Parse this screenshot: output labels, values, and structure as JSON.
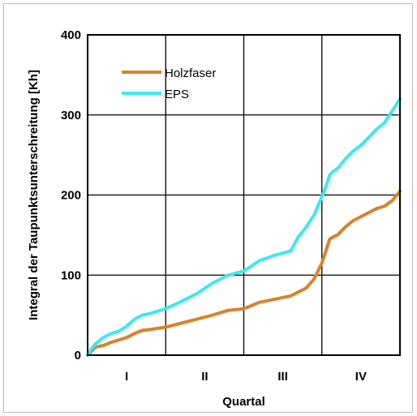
{
  "chart_data": {
    "type": "line",
    "title": "",
    "xlabel": "Quartal",
    "ylabel": "Integral der Taupunktsunterschreitung [Kh]",
    "ylim": [
      0,
      400
    ],
    "yticks": [
      0,
      100,
      200,
      300,
      400
    ],
    "xlim": [
      0,
      4
    ],
    "categories": [
      "I",
      "II",
      "III",
      "IV"
    ],
    "grid": true,
    "legend_position": "top-left",
    "series": [
      {
        "name": "Holzfaser",
        "color": "#D9822B",
        "x": [
          0,
          0.05,
          0.1,
          0.2,
          0.3,
          0.4,
          0.5,
          0.6,
          0.7,
          0.8,
          1.0,
          1.2,
          1.4,
          1.6,
          1.8,
          2.0,
          2.2,
          2.4,
          2.6,
          2.8,
          2.9,
          3.0,
          3.05,
          3.1,
          3.15,
          3.2,
          3.3,
          3.4,
          3.5,
          3.6,
          3.7,
          3.8,
          3.9,
          4.0
        ],
        "y": [
          0,
          5,
          10,
          12,
          16,
          19,
          22,
          27,
          31,
          32,
          35,
          40,
          45,
          50,
          56,
          58,
          66,
          70,
          74,
          84,
          95,
          115,
          130,
          145,
          148,
          150,
          160,
          168,
          173,
          178,
          183,
          186,
          193,
          205
        ]
      },
      {
        "name": "EPS",
        "color": "#3DE8F0",
        "x": [
          0,
          0.05,
          0.1,
          0.2,
          0.3,
          0.4,
          0.5,
          0.6,
          0.7,
          0.8,
          1.0,
          1.2,
          1.4,
          1.6,
          1.8,
          2.0,
          2.2,
          2.4,
          2.6,
          2.7,
          2.8,
          2.9,
          3.0,
          3.05,
          3.1,
          3.15,
          3.2,
          3.3,
          3.4,
          3.5,
          3.6,
          3.7,
          3.8,
          3.9,
          4.0
        ],
        "y": [
          0,
          8,
          14,
          22,
          27,
          30,
          36,
          45,
          50,
          52,
          58,
          67,
          77,
          90,
          100,
          105,
          118,
          125,
          130,
          148,
          160,
          175,
          198,
          210,
          225,
          230,
          233,
          245,
          255,
          262,
          272,
          282,
          290,
          305,
          320
        ]
      }
    ]
  }
}
